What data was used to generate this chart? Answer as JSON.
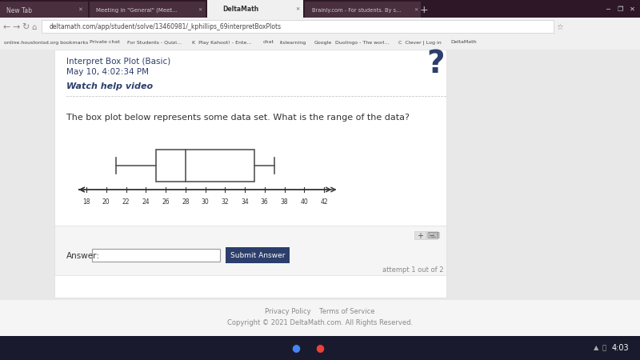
{
  "whisker_low": 21,
  "q1": 25,
  "median": 28,
  "q3": 35,
  "whisker_high": 37,
  "x_min": 18,
  "x_max": 42,
  "x_ticks": [
    18,
    20,
    22,
    24,
    26,
    28,
    30,
    32,
    34,
    36,
    38,
    40,
    42
  ],
  "browser_bg": "#3a1f2e",
  "tab_bar_bg": "#2e1828",
  "active_tab_bg": "#f0f0f0",
  "nav_bar_bg": "#f0f0f0",
  "bookmarks_bar_bg": "#f0f0f0",
  "page_bg": "#ffffff",
  "content_bg": "#ffffff",
  "panel_bg": "#f5f5f5",
  "panel_border": "#dddddd",
  "box_color": "#ffffff",
  "box_edgecolor": "#555555",
  "whisker_color": "#555555",
  "line_width": 1.2,
  "text_color_dark": "#2c3e6b",
  "text_color_normal": "#333333",
  "text_color_light": "#888888",
  "header_text1": "Interpret Box Plot (Basic)",
  "header_text2": "May 10, 4:02:34 PM",
  "header_text3": "Watch help video",
  "question_text": "The box plot below represents some data set. What is the range of the data?",
  "answer_label": "Answer:",
  "submit_label": "Submit Answer",
  "attempt_text": "attempt 1 out of 2",
  "footer_text1": "Privacy Policy    Terms of Service",
  "footer_text2": "Copyright © 2021 DeltaMath.com. All Rights Reserved.",
  "url_text": "deltamath.com/app/student/solve/13460981/_kphillips_69interpretBoxPlots",
  "tab_text": "DeltaMath",
  "submit_bg": "#2c3e6b",
  "taskbar_bg": "#1a1a2e",
  "taskbar_time": "4:03"
}
